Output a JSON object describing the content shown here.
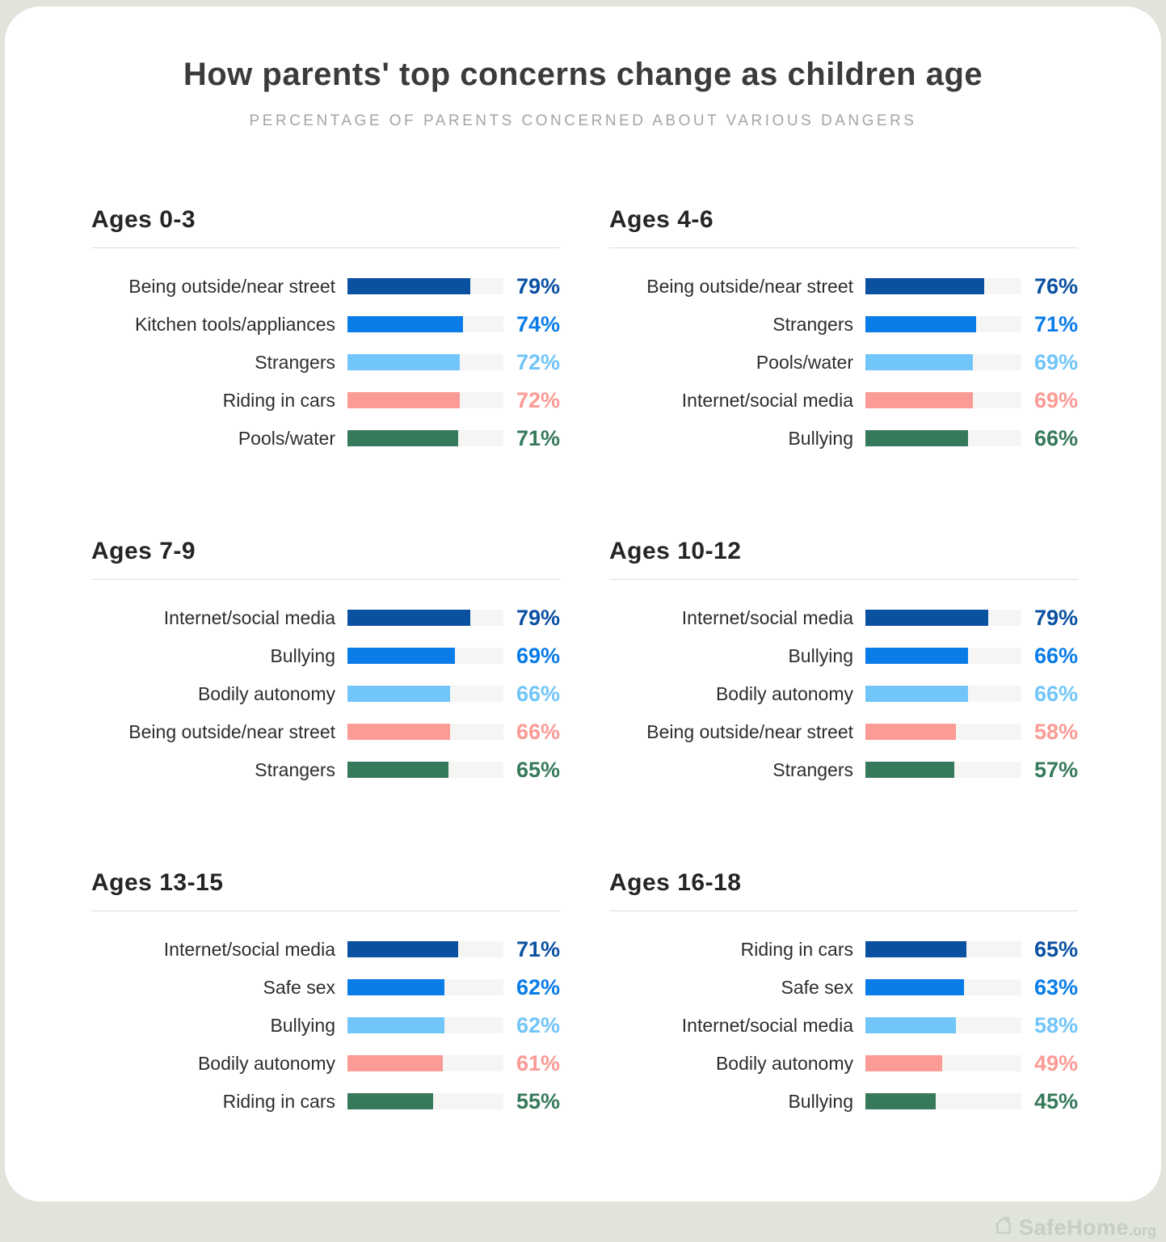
{
  "header": {
    "title": "How parents' top concerns change as children age",
    "subtitle": "PERCENTAGE OF PARENTS CONCERNED ABOUT VARIOUS DANGERS"
  },
  "colors": {
    "navy": "#0b51a2",
    "blue": "#0a7ce8",
    "light_blue": "#72c5f9",
    "salmon": "#fb9b95",
    "green": "#377a5b",
    "track": "#f5f6f4",
    "background": "#e0e4da",
    "card": "#ffffff"
  },
  "panels": [
    {
      "title": "Ages 0-3",
      "rows": [
        {
          "label": "Being outside/near street",
          "value": 79,
          "display": "79%"
        },
        {
          "label": "Kitchen tools/appliances",
          "value": 74,
          "display": "74%"
        },
        {
          "label": "Strangers",
          "value": 72,
          "display": "72%"
        },
        {
          "label": "Riding in cars",
          "value": 72,
          "display": "72%"
        },
        {
          "label": "Pools/water",
          "value": 71,
          "display": "71%"
        }
      ]
    },
    {
      "title": "Ages 4-6",
      "rows": [
        {
          "label": "Being outside/near street",
          "value": 76,
          "display": "76%"
        },
        {
          "label": "Strangers",
          "value": 71,
          "display": "71%"
        },
        {
          "label": "Pools/water",
          "value": 69,
          "display": "69%"
        },
        {
          "label": "Internet/social media",
          "value": 69,
          "display": "69%"
        },
        {
          "label": "Bullying",
          "value": 66,
          "display": "66%"
        }
      ]
    },
    {
      "title": "Ages 7-9",
      "rows": [
        {
          "label": "Internet/social media",
          "value": 79,
          "display": "79%"
        },
        {
          "label": "Bullying",
          "value": 69,
          "display": "69%"
        },
        {
          "label": "Bodily autonomy",
          "value": 66,
          "display": "66%"
        },
        {
          "label": "Being outside/near street",
          "value": 66,
          "display": "66%"
        },
        {
          "label": "Strangers",
          "value": 65,
          "display": "65%"
        }
      ]
    },
    {
      "title": "Ages 10-12",
      "rows": [
        {
          "label": "Internet/social media",
          "value": 79,
          "display": "79%"
        },
        {
          "label": "Bullying",
          "value": 66,
          "display": "66%"
        },
        {
          "label": "Bodily autonomy",
          "value": 66,
          "display": "66%"
        },
        {
          "label": "Being outside/near street",
          "value": 58,
          "display": "58%"
        },
        {
          "label": "Strangers",
          "value": 57,
          "display": "57%"
        }
      ]
    },
    {
      "title": "Ages 13-15",
      "rows": [
        {
          "label": "Internet/social media",
          "value": 71,
          "display": "71%"
        },
        {
          "label": "Safe sex",
          "value": 62,
          "display": "62%"
        },
        {
          "label": "Bullying",
          "value": 62,
          "display": "62%"
        },
        {
          "label": "Bodily autonomy",
          "value": 61,
          "display": "61%"
        },
        {
          "label": "Riding in cars",
          "value": 55,
          "display": "55%"
        }
      ]
    },
    {
      "title": "Ages 16-18",
      "rows": [
        {
          "label": "Riding in cars",
          "value": 65,
          "display": "65%"
        },
        {
          "label": "Safe sex",
          "value": 63,
          "display": "63%"
        },
        {
          "label": "Internet/social media",
          "value": 58,
          "display": "58%"
        },
        {
          "label": "Bodily autonomy",
          "value": 49,
          "display": "49%"
        },
        {
          "label": "Bullying",
          "value": 45,
          "display": "45%"
        }
      ]
    }
  ],
  "watermark": {
    "icon": "safehome-house-icon",
    "text": "SafeHome",
    "suffix": ".org"
  },
  "chart_data": [
    {
      "type": "bar",
      "title": "Ages 0-3",
      "orientation": "horizontal",
      "categories": [
        "Being outside/near street",
        "Kitchen tools/appliances",
        "Strangers",
        "Riding in cars",
        "Pools/water"
      ],
      "values": [
        79,
        74,
        72,
        72,
        71
      ],
      "unit": "%",
      "xlim": [
        0,
        100
      ],
      "bar_colors": [
        "#0b51a2",
        "#0a7ce8",
        "#72c5f9",
        "#fb9b95",
        "#377a5b"
      ],
      "grid": false,
      "legend": false
    },
    {
      "type": "bar",
      "title": "Ages 4-6",
      "orientation": "horizontal",
      "categories": [
        "Being outside/near street",
        "Strangers",
        "Pools/water",
        "Internet/social media",
        "Bullying"
      ],
      "values": [
        76,
        71,
        69,
        69,
        66
      ],
      "unit": "%",
      "xlim": [
        0,
        100
      ],
      "bar_colors": [
        "#0b51a2",
        "#0a7ce8",
        "#72c5f9",
        "#fb9b95",
        "#377a5b"
      ],
      "grid": false,
      "legend": false
    },
    {
      "type": "bar",
      "title": "Ages 7-9",
      "orientation": "horizontal",
      "categories": [
        "Internet/social media",
        "Bullying",
        "Bodily autonomy",
        "Being outside/near street",
        "Strangers"
      ],
      "values": [
        79,
        69,
        66,
        66,
        65
      ],
      "unit": "%",
      "xlim": [
        0,
        100
      ],
      "bar_colors": [
        "#0b51a2",
        "#0a7ce8",
        "#72c5f9",
        "#fb9b95",
        "#377a5b"
      ],
      "grid": false,
      "legend": false
    },
    {
      "type": "bar",
      "title": "Ages 10-12",
      "orientation": "horizontal",
      "categories": [
        "Internet/social media",
        "Bullying",
        "Bodily autonomy",
        "Being outside/near street",
        "Strangers"
      ],
      "values": [
        79,
        66,
        66,
        58,
        57
      ],
      "unit": "%",
      "xlim": [
        0,
        100
      ],
      "bar_colors": [
        "#0b51a2",
        "#0a7ce8",
        "#72c5f9",
        "#fb9b95",
        "#377a5b"
      ],
      "grid": false,
      "legend": false
    },
    {
      "type": "bar",
      "title": "Ages 13-15",
      "orientation": "horizontal",
      "categories": [
        "Internet/social media",
        "Safe sex",
        "Bullying",
        "Bodily autonomy",
        "Riding in cars"
      ],
      "values": [
        71,
        62,
        62,
        61,
        55
      ],
      "unit": "%",
      "xlim": [
        0,
        100
      ],
      "bar_colors": [
        "#0b51a2",
        "#0a7ce8",
        "#72c5f9",
        "#fb9b95",
        "#377a5b"
      ],
      "grid": false,
      "legend": false
    },
    {
      "type": "bar",
      "title": "Ages 16-18",
      "orientation": "horizontal",
      "categories": [
        "Riding in cars",
        "Safe sex",
        "Internet/social media",
        "Bodily autonomy",
        "Bullying"
      ],
      "values": [
        65,
        63,
        58,
        49,
        45
      ],
      "unit": "%",
      "xlim": [
        0,
        100
      ],
      "bar_colors": [
        "#0b51a2",
        "#0a7ce8",
        "#72c5f9",
        "#fb9b95",
        "#377a5b"
      ],
      "grid": false,
      "legend": false
    }
  ]
}
